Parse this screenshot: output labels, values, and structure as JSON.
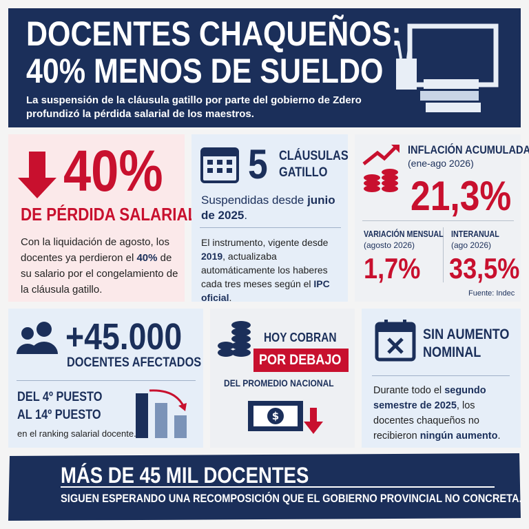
{
  "header": {
    "title_lines": [
      "DOCENTES CHAQUEÑOS:",
      "40% MENOS DE SUELDO"
    ],
    "subtitle": "La suspensión de la cláusula gatillo por parte del gobierno de Zdero profundizó la pérdida salarial de los maestros."
  },
  "loss": {
    "figure": "40%",
    "label": "DE PÉRDIDA SALARIAL",
    "body": [
      {
        "text": "Con la liquidación de agosto, los docentes ya perdieron el ",
        "bold": false
      },
      {
        "text": "40%",
        "bold": true
      },
      {
        "text": " de su salario por el congelamiento de la cláusula gatillo.",
        "bold": false
      }
    ]
  },
  "clauses": {
    "figure": "5",
    "label_lines": [
      "CLÁUSULAS",
      "GATILLO"
    ],
    "subtitle": [
      {
        "text": "Suspendidas desde ",
        "bold": false
      },
      {
        "text": "junio de 2025",
        "bold": true
      },
      {
        "text": ".",
        "bold": false
      }
    ],
    "body": [
      {
        "text": "El instrumento, vigente desde ",
        "bold": false
      },
      {
        "text": "2019",
        "bold": true
      },
      {
        "text": ", actualizaba automáticamente los haberes cada tres meses según el ",
        "bold": false
      },
      {
        "text": "IPC oficial",
        "bold": true
      },
      {
        "text": ".",
        "bold": false
      }
    ]
  },
  "inflation": {
    "title": "INFLACIÓN ACUMULADA",
    "period": "(ene-ago 2026)",
    "figure": "21,3%",
    "monthly": {
      "title": "VARIACIÓN MENSUAL",
      "period": "(agosto 2026)",
      "figure": "1,7%"
    },
    "yearly": {
      "title": "INTERANUAL",
      "period": "(ago 2026)",
      "figure": "33,5%"
    },
    "source": "Fuente: Indec"
  },
  "affected": {
    "figure": "+45.000",
    "label": "DOCENTES AFECTADOS",
    "ranking_lines": [
      "DEL 4º PUESTO",
      "AL 14º PUESTO"
    ],
    "note": "en el ranking salarial docente."
  },
  "below": {
    "line1": "HOY COBRAN",
    "highlight": "POR DEBAJO",
    "line3": "DEL PROMEDIO NACIONAL"
  },
  "no_raise": {
    "title_lines": [
      "SIN AUMENTO",
      "NOMINAL"
    ],
    "body": [
      {
        "text": "Durante todo el ",
        "bold": false
      },
      {
        "text": "segundo semestre de 2025",
        "bold": true
      },
      {
        "text": ", los docentes chaqueños no recibieron ",
        "bold": false
      },
      {
        "text": "ningún aumento",
        "bold": true
      },
      {
        "text": ".",
        "bold": false
      }
    ]
  },
  "footer": {
    "title": "MÁS DE 45 MIL DOCENTES",
    "subtitle": "SIGUEN ESPERANDO UNA RECOMPOSICIÓN QUE EL GOBIERNO PROVINCIAL NO CONCRETA."
  }
}
